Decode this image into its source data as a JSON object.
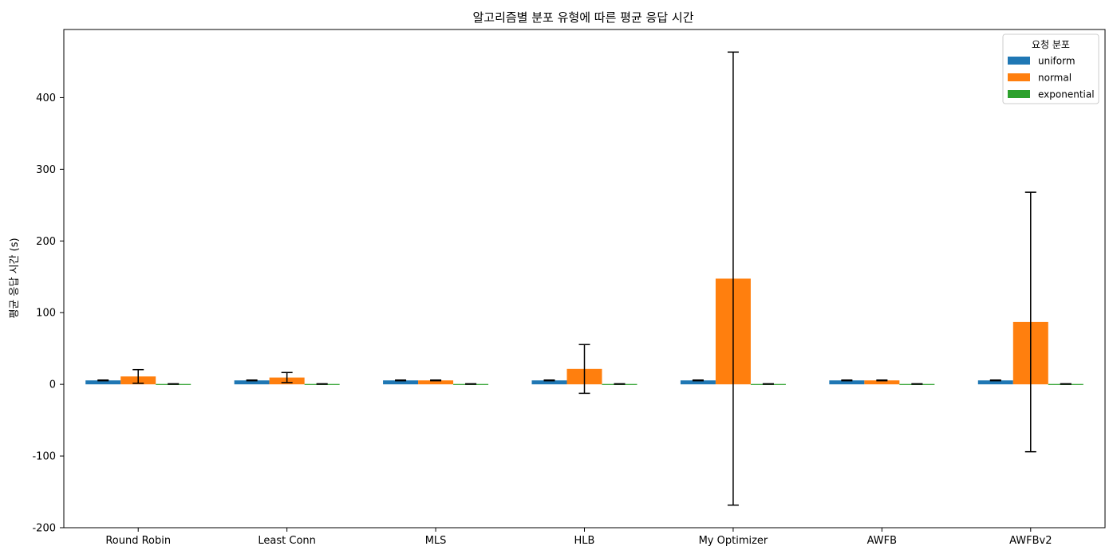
{
  "chart_data": {
    "type": "bar",
    "title": "알고리즘별 분포 유형에 따른 평균 응답 시간",
    "xlabel": "",
    "ylabel": "평균 응답 시간 (s)",
    "categories": [
      "Round Robin",
      "Least Conn",
      "MLS",
      "HLB",
      "My Optimizer",
      "AWFB",
      "AWFBv2"
    ],
    "ylim": [
      -200,
      495
    ],
    "yticks": [
      -200,
      -100,
      0,
      100,
      200,
      300,
      400
    ],
    "grid": false,
    "legend": {
      "title": "요청 분포",
      "placement": "top-right"
    },
    "series": [
      {
        "name": "uniform",
        "color": "#1f77b4",
        "values": [
          5.5,
          5.5,
          5.5,
          5.5,
          5.5,
          5.5,
          5.5
        ],
        "errors": [
          0.5,
          0.5,
          0.5,
          0.5,
          0.5,
          0.5,
          0.5
        ]
      },
      {
        "name": "normal",
        "color": "#ff7f0e",
        "values": [
          11,
          9.5,
          5.5,
          21.5,
          147.5,
          5.5,
          87
        ],
        "errors": [
          9.5,
          7,
          0.5,
          34,
          316,
          0.5,
          181
        ]
      },
      {
        "name": "exponential",
        "color": "#2ca02c",
        "values": [
          0.5,
          0.5,
          0.5,
          0.5,
          0.5,
          0.5,
          0.5
        ],
        "errors": [
          0.3,
          0.3,
          0.3,
          0.3,
          0.3,
          0.3,
          0.3
        ]
      }
    ]
  }
}
